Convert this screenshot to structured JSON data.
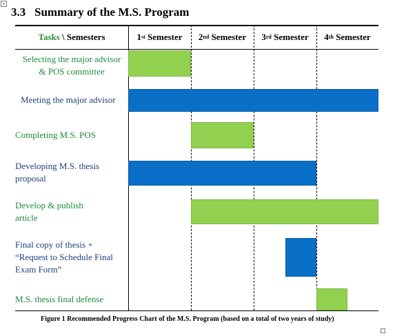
{
  "section": {
    "number": "3.3",
    "title": "Summary of the M.S. Program"
  },
  "header": {
    "tasks_label": "Tasks",
    "separator": " \\ ",
    "semesters_label": "Semesters",
    "semesters": [
      {
        "num": "1",
        "sup": "st",
        "label": "Semester"
      },
      {
        "num": "2",
        "sup": "nd",
        "label": "Semester"
      },
      {
        "num": "3",
        "sup": "rd",
        "label": "Semester"
      },
      {
        "num": "4",
        "sup": "th",
        "label": "Semester"
      }
    ]
  },
  "tasks": [
    {
      "lines": [
        "Selecting the major advisor",
        "& POS committee"
      ],
      "text_color": "green",
      "bar_color": "green",
      "start": 0,
      "end": 1
    },
    {
      "lines": [
        "Meeting the major advisor"
      ],
      "text_color": "blue",
      "bar_color": "blue",
      "start": 0,
      "end": 4
    },
    {
      "lines": [
        "Completing M.S. POS"
      ],
      "text_color": "green",
      "bar_color": "green",
      "start": 1,
      "end": 2
    },
    {
      "lines": [
        "Developing M.S. thesis",
        "proposal"
      ],
      "text_color": "blue",
      "bar_color": "blue",
      "start": 0,
      "end": 3
    },
    {
      "lines": [
        "Develop & publish",
        "article"
      ],
      "text_color": "green",
      "bar_color": "green",
      "start": 1,
      "end": 4
    },
    {
      "lines": [
        "Final copy of thesis +",
        "“Request to Schedule Final",
        "Exam Form”"
      ],
      "text_color": "blue",
      "bar_color": "blue",
      "start": 2.5,
      "end": 3
    },
    {
      "lines": [
        "M.S. thesis final defense"
      ],
      "text_color": "green",
      "bar_color": "green",
      "start": 3,
      "end": 3.5
    }
  ],
  "caption": "Figure 1   Recommended Progress Chart of the M.S. Program (based on a total of two years of study)",
  "colors": {
    "green_bar": "#92d050",
    "blue_bar": "#0a6fc7",
    "green_text": "#1e8a3c",
    "blue_text": "#1e3f7a"
  }
}
